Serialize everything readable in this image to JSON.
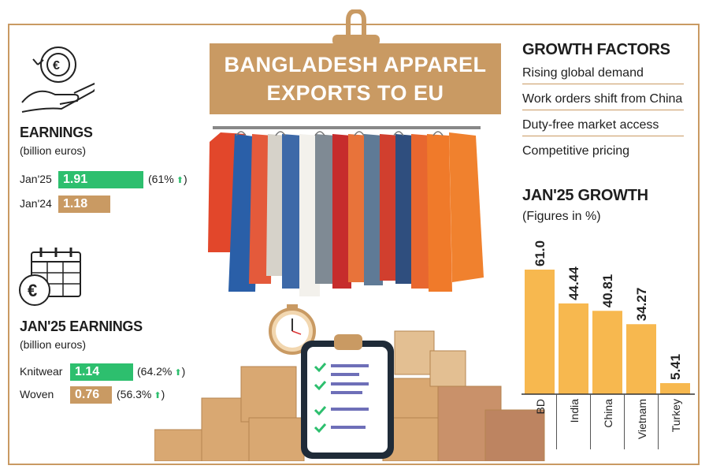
{
  "title": {
    "line1": "BANGLADESH APPAREL",
    "line2": "EXPORTS TO EU"
  },
  "earnings": {
    "heading": "EARNINGS",
    "unit": "(billion euros)",
    "rows": [
      {
        "label": "Jan'25",
        "value": "1.91",
        "change": "(61%",
        "bar_fraction": 1.0,
        "color": "#2dbf6e"
      },
      {
        "label": "Jan'24",
        "value": "1.18",
        "bar_fraction": 0.55,
        "color": "#c99a63"
      }
    ]
  },
  "jan25_earnings": {
    "heading": "JAN'25 EARNINGS",
    "unit": "(billion euros)",
    "rows": [
      {
        "label": "Knitwear",
        "value": "1.14",
        "change": "(64.2%",
        "color": "#2dbf6e"
      },
      {
        "label": "Woven",
        "value": "0.76",
        "change": "(56.3%",
        "color": "#c99a63"
      }
    ]
  },
  "growth_factors": {
    "heading": "GROWTH FACTORS",
    "items": [
      "Rising global demand",
      "Work orders shift from China",
      "Duty-free market access",
      "Competitive pricing"
    ]
  },
  "colors": {
    "accent": "#c99a63",
    "bar": "#f7b84f",
    "up": "#2dbf6e"
  },
  "chart_data": {
    "type": "bar",
    "title": "JAN'25 GROWTH",
    "subtitle": "(Figures in %)",
    "categories": [
      "BD",
      "India",
      "China",
      "Vietnam",
      "Turkey"
    ],
    "values": [
      61.0,
      44.44,
      40.81,
      34.27,
      5.41
    ],
    "value_labels": [
      "61.0",
      "44.44",
      "40.81",
      "34.27",
      "5.41"
    ],
    "ylim": [
      0,
      70
    ],
    "bar_color": "#f7b84f"
  },
  "icons": [
    "euro-cycle-hand-icon",
    "calendar-euro-icon",
    "clock-icon",
    "clipboard-checklist-icon",
    "clothes-rack-illustration",
    "cardboard-boxes-illustration"
  ]
}
